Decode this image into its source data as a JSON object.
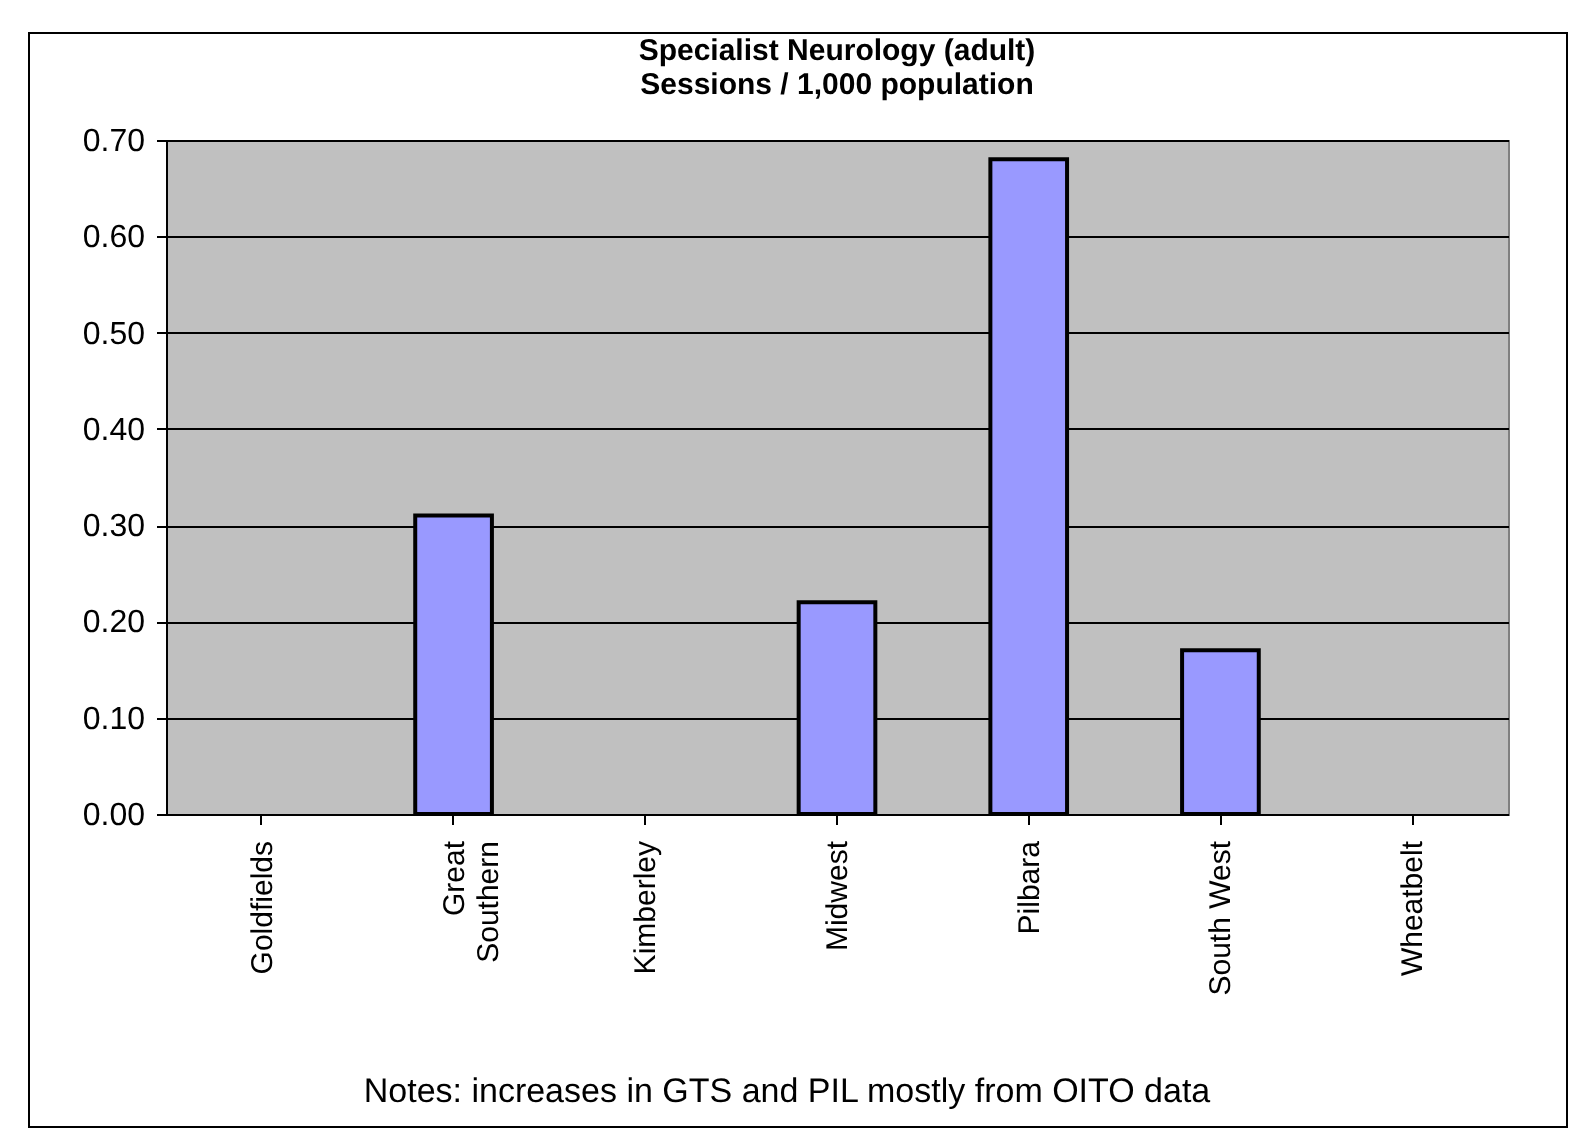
{
  "chart_data": {
    "type": "bar",
    "title": "Specialist Neurology (adult)",
    "subtitle": "Sessions / 1,000 population",
    "categories": [
      "Goldfields",
      "Great Southern",
      "Kimberley",
      "Midwest",
      "Pilbara",
      "South West",
      "Wheatbelt"
    ],
    "values": [
      null,
      0.31,
      null,
      0.22,
      0.68,
      0.17,
      null
    ],
    "color": "#9999ff",
    "ylim": [
      0,
      0.7
    ],
    "yticks": [
      {
        "value": 0,
        "label": "0.00"
      },
      {
        "value": 0.1,
        "label": "0.10"
      },
      {
        "value": 0.2,
        "label": "0.20"
      },
      {
        "value": 0.3,
        "label": "0.30"
      },
      {
        "value": 0.4,
        "label": "0.40"
      },
      {
        "value": 0.5,
        "label": "0.50"
      },
      {
        "value": 0.6,
        "label": "0.60"
      },
      {
        "value": 0.7,
        "label": "0.70"
      }
    ],
    "grid": "y",
    "annotations": [
      "Notes: increases in GTS and PIL mostly from OITO data"
    ]
  }
}
